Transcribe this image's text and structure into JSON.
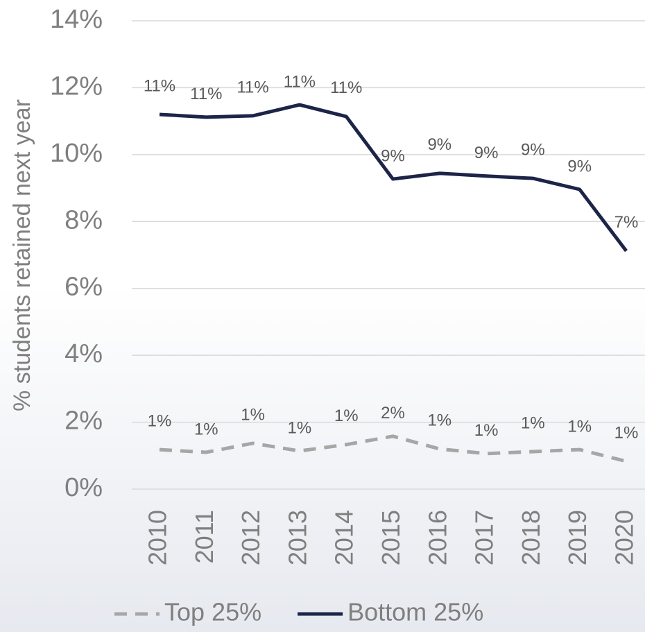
{
  "chart_data": {
    "type": "line",
    "y_label": "% students retained next year",
    "categories": [
      "2010",
      "2011",
      "2012",
      "2013",
      "2014",
      "2015",
      "2016",
      "2017",
      "2018",
      "2019",
      "2020"
    ],
    "series": [
      {
        "name": "Top 25%",
        "color": "#a6a6a6",
        "dash": true,
        "values": [
          1.18,
          1.1,
          1.37,
          1.14,
          1.33,
          1.58,
          1.2,
          1.06,
          1.12,
          1.18,
          0.83
        ],
        "value_labels": [
          "1%",
          "1%",
          "1%",
          "1%",
          "1%",
          "2%",
          "1%",
          "1%",
          "1%",
          "1%",
          "1%"
        ]
      },
      {
        "name": "Bottom 25%",
        "color": "#1c2448",
        "dash": false,
        "values": [
          11.2,
          11.12,
          11.16,
          11.49,
          11.14,
          9.27,
          9.44,
          9.36,
          9.29,
          8.96,
          7.12
        ],
        "value_labels": [
          "11%",
          "11%",
          "11%",
          "11%",
          "11%",
          "9%",
          "9%",
          "9%",
          "9%",
          "9%",
          "7%"
        ]
      }
    ],
    "ylim": [
      0,
      14
    ],
    "yticks": [
      {
        "value": 0,
        "label": "0%"
      },
      {
        "value": 2,
        "label": "2%"
      },
      {
        "value": 4,
        "label": "4%"
      },
      {
        "value": 6,
        "label": "6%"
      },
      {
        "value": 8,
        "label": "8%"
      },
      {
        "value": 10,
        "label": "10%"
      },
      {
        "value": 12,
        "label": "12%"
      },
      {
        "value": 14,
        "label": "14%"
      }
    ],
    "grid": true,
    "legend": "bottom"
  }
}
